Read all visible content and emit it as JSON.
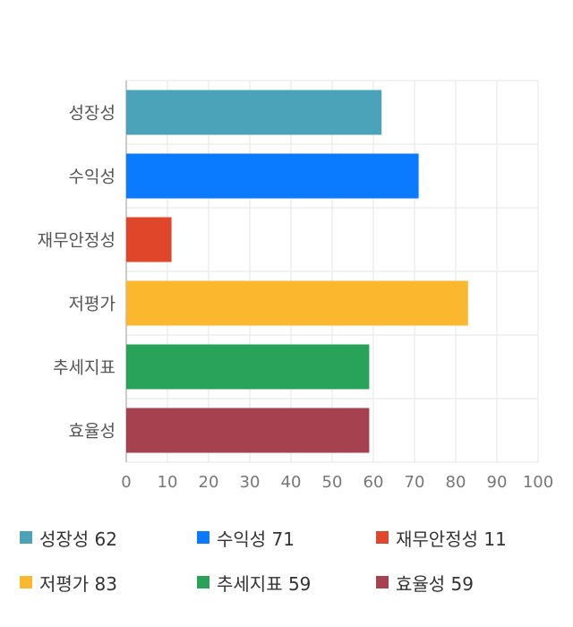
{
  "chart_data": {
    "type": "bar",
    "orientation": "horizontal",
    "categories": [
      "성장성",
      "수익성",
      "재무안정성",
      "저평가",
      "추세지표",
      "효율성"
    ],
    "values": [
      62,
      71,
      11,
      83,
      59,
      59
    ],
    "colors": [
      "#4aa3b8",
      "#0a7bff",
      "#e0462a",
      "#fbb82f",
      "#2aa35a",
      "#a64150"
    ],
    "xlim": [
      0,
      100
    ],
    "xticks": [
      0,
      10,
      20,
      30,
      40,
      50,
      60,
      70,
      80,
      90,
      100
    ],
    "title": "",
    "xlabel": "",
    "ylabel": "",
    "grid": true,
    "legend_position": "bottom"
  },
  "legend": [
    {
      "label": "성장성 62",
      "color": "#4aa3b8"
    },
    {
      "label": "수익성 71",
      "color": "#0a7bff"
    },
    {
      "label": "재무안정성 11",
      "color": "#e0462a"
    },
    {
      "label": "저평가 83",
      "color": "#fbb82f"
    },
    {
      "label": "추세지표 59",
      "color": "#2aa35a"
    },
    {
      "label": "효율성 59",
      "color": "#a64150"
    }
  ]
}
